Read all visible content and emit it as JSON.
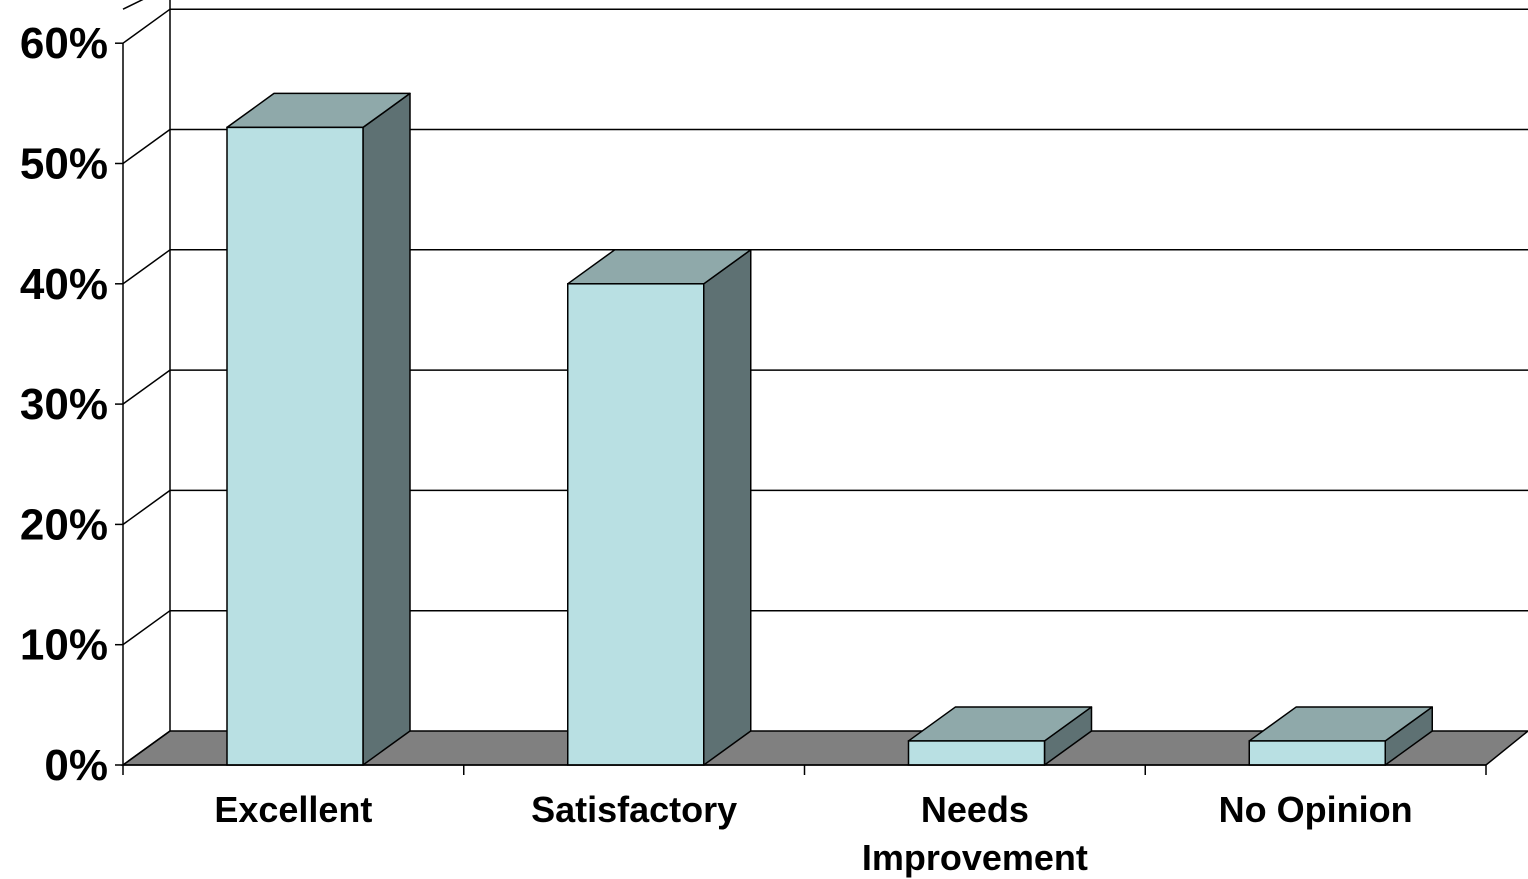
{
  "chart_data": {
    "type": "bar",
    "style": "3d-column",
    "categories": [
      "Excellent",
      "Satisfactory",
      "Needs Improvement",
      "No Opinion"
    ],
    "category_lines": [
      [
        "Excellent"
      ],
      [
        "Satisfactory"
      ],
      [
        "Needs",
        "Improvement"
      ],
      [
        "No Opinion"
      ]
    ],
    "values": [
      53,
      40,
      2,
      2
    ],
    "ylim": [
      0,
      60
    ],
    "yticks": [
      "0%",
      "10%",
      "20%",
      "30%",
      "40%",
      "50%",
      "60%"
    ],
    "grid": true,
    "legend": "none",
    "colors": {
      "bar_front": "#b9e0e3",
      "bar_top": "#8fa9aa",
      "bar_side": "#5e7173",
      "floor": "#808080",
      "grid": "#000000",
      "background": "#ffffff"
    }
  }
}
